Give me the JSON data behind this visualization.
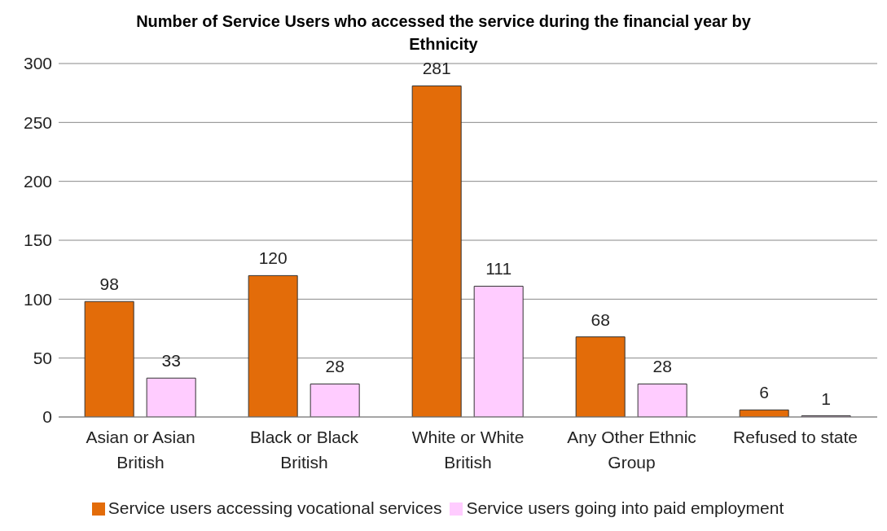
{
  "chart_data": {
    "type": "bar",
    "title": "Number of Service Users who accessed the service during the financial year by Ethnicity",
    "categories": [
      "Asian or Asian British",
      "Black or Black British",
      "White or White British",
      "Any Other Ethnic Group",
      "Refused to state"
    ],
    "series": [
      {
        "name": "Service users  accessing vocational services",
        "color": "#e36c09",
        "values": [
          98,
          120,
          281,
          68,
          6
        ]
      },
      {
        "name": "Service users  going into paid employment",
        "color": "#ffccff",
        "values": [
          33,
          28,
          111,
          28,
          1
        ]
      }
    ],
    "ylim": [
      0,
      300
    ],
    "yticks": [
      0,
      50,
      100,
      150,
      200,
      250,
      300
    ],
    "grid": "y",
    "legend": "bottom",
    "data_labels": true
  }
}
